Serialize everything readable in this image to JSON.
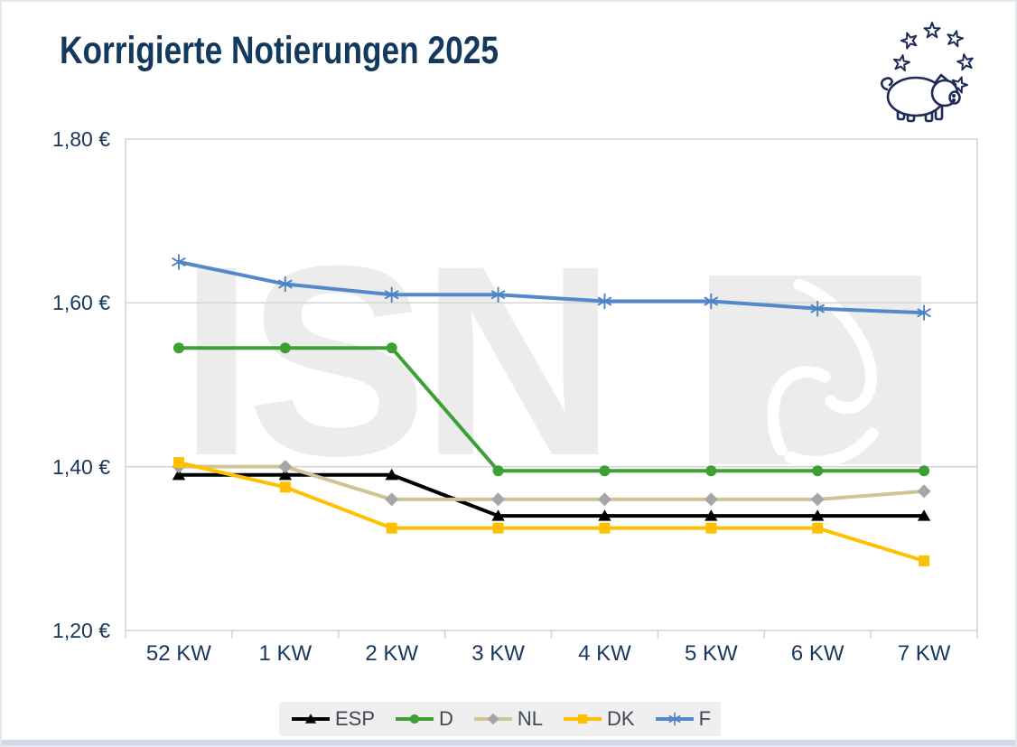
{
  "header": {
    "title": "Korrigierte Notierungen 2025"
  },
  "logo": {
    "icon": "pig-with-eu-stars-icon",
    "color": "#1F2A56"
  },
  "watermark": {
    "text": "ISN",
    "box_icon": "pig-head-outline-icon"
  },
  "chart_data": {
    "type": "line",
    "title": "Korrigierte Notierungen 2025",
    "xlabel": "",
    "ylabel": "",
    "categories": [
      "52 KW",
      "1 KW",
      "2 KW",
      "3 KW",
      "4 KW",
      "5 KW",
      "6 KW",
      "7 KW"
    ],
    "series": [
      {
        "name": "ESP",
        "color": "#000000",
        "marker": "triangle",
        "values": [
          1.39,
          1.39,
          1.39,
          1.34,
          1.34,
          1.34,
          1.34,
          1.34
        ]
      },
      {
        "name": "D",
        "color": "#3DA035",
        "marker": "circle",
        "values": [
          1.545,
          1.545,
          1.545,
          1.395,
          1.395,
          1.395,
          1.395,
          1.395
        ]
      },
      {
        "name": "NL",
        "color": "#CFC493",
        "marker": "diamond",
        "marker_color": "#A6A6A6",
        "values": [
          1.4,
          1.4,
          1.36,
          1.36,
          1.36,
          1.36,
          1.36,
          1.37
        ]
      },
      {
        "name": "DK",
        "color": "#FFC000",
        "marker": "square",
        "values": [
          1.405,
          1.375,
          1.325,
          1.325,
          1.325,
          1.325,
          1.325,
          1.285
        ]
      },
      {
        "name": "F",
        "color": "#5588CB",
        "marker": "asterisk",
        "marker_color": "#4C82C4",
        "values": [
          1.65,
          1.623,
          1.61,
          1.61,
          1.602,
          1.602,
          1.593,
          1.588
        ]
      }
    ],
    "ylim": [
      1.2,
      1.8
    ],
    "yticks": [
      {
        "value": 1.8,
        "label": "1,80 €"
      },
      {
        "value": 1.6,
        "label": "1,60 €"
      },
      {
        "value": 1.4,
        "label": "1,40 €"
      },
      {
        "value": 1.2,
        "label": "1,20 €"
      }
    ],
    "gridlines": [
      1.6,
      1.4
    ],
    "grid": true,
    "legend_position": "bottom",
    "legend_items": [
      "ESP",
      "D",
      "NL",
      "DK",
      "F"
    ],
    "currency_format": "comma-decimal-euro"
  },
  "style": {
    "accent_text": "#17375D",
    "grid_color": "#D6D6D6",
    "legend_bg": "#EFEFEF",
    "watermark_color": "#ECECEC",
    "bottom_edge": "#D0D9E8"
  }
}
